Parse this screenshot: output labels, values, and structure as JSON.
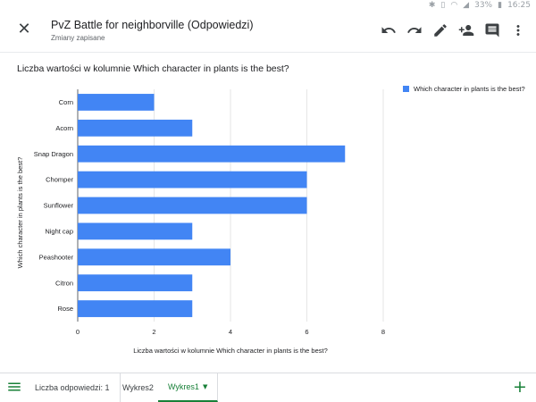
{
  "statusbar": {
    "icons": [
      "bluetooth-icon",
      "vibrate-icon",
      "wifi-icon",
      "signal-icon"
    ],
    "battery": "33%",
    "time": "16:25"
  },
  "header": {
    "close_icon": "close-icon",
    "title": "PvZ Battle for neighborville (Odpowiedzi)",
    "status": "Zmiany zapisane",
    "actions": [
      "undo-icon",
      "redo-icon",
      "edit-icon",
      "person-add-icon",
      "comment-icon",
      "more-vert-icon"
    ]
  },
  "chart_data": {
    "type": "bar",
    "orientation": "horizontal",
    "title": "Liczba wartości w kolumnie Which character in plants is the best?",
    "categories": [
      "Corn",
      "Acorn",
      "Snap Dragon",
      "Chomper",
      "Sunflower",
      "Night cap",
      "Peashooter",
      "Citron",
      "Rose"
    ],
    "series": [
      {
        "name": "Which character in plants is the best?",
        "values": [
          2,
          3,
          7,
          6,
          6,
          3,
          4,
          3,
          3
        ],
        "color": "#4285f4"
      }
    ],
    "xlabel": "Liczba wartości w kolumnie Which character in plants is the best?",
    "ylabel": "Which character in plants is the best?",
    "xlim": [
      0,
      8
    ],
    "xticks": [
      0,
      2,
      4,
      6,
      8
    ],
    "grid": true,
    "legend": "top-right"
  },
  "bottom": {
    "menu_icon": "menu-icon",
    "tabs": [
      {
        "label": "Liczba odpowiedzi: 1",
        "active": false
      },
      {
        "label": "Wykres2",
        "active": false
      },
      {
        "label": "Wykres1",
        "active": true
      }
    ],
    "active_caret": "▼",
    "add_icon": "plus-icon"
  },
  "colors": {
    "bar": "#4285f4",
    "accent": "#188038",
    "grid": "#e0e0e0"
  }
}
